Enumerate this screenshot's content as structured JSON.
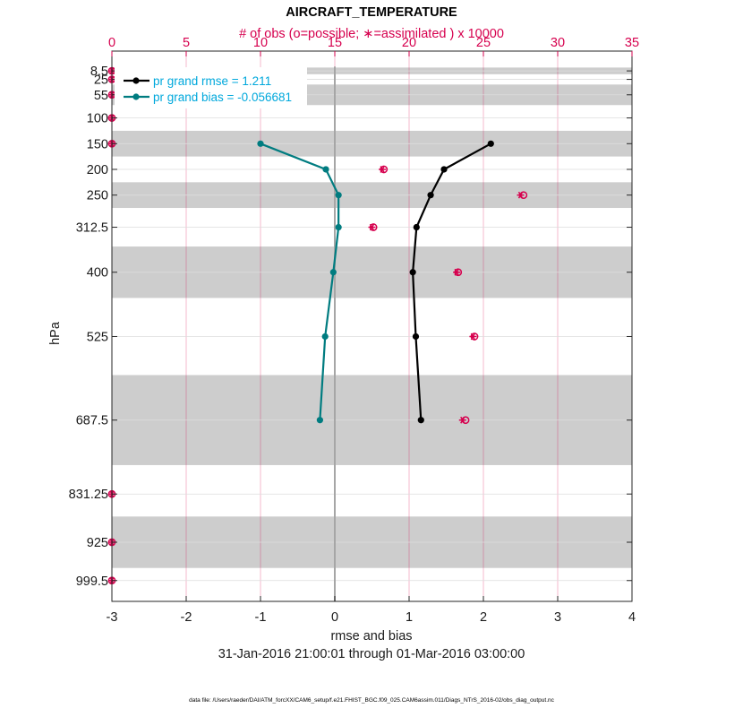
{
  "chart_data": {
    "type": "line",
    "title": "AIRCRAFT_TEMPERATURE",
    "top_axis_label": "# of obs (o=possible; ∗=assimilated ) x 10000",
    "xlabel": "rmse and bias",
    "ylabel": "hPa",
    "date_range": "31-Jan-2016 21:00:01 through 01-Mar-2016 03:00:00",
    "footnote": "data file: /Users/raeder/DAI/ATM_forcXX/CAM6_setup/f.e21.FHIST_BGC.f09_025.CAM6assim.011/Diags_NTrS_2016-02/obs_diag_output.nc",
    "xlim": [
      -3,
      4
    ],
    "x_ticks": [
      -3,
      -2,
      -1,
      0,
      1,
      2,
      3,
      4
    ],
    "x_tick_labels": [
      "-3",
      "-2",
      "-1",
      "0",
      "1",
      "2",
      "3",
      "4"
    ],
    "top_xlim": [
      0,
      35
    ],
    "top_ticks": [
      0,
      5,
      10,
      15,
      20,
      25,
      30,
      35
    ],
    "top_tick_labels": [
      "0",
      "5",
      "10",
      "15",
      "20",
      "25",
      "30",
      "35"
    ],
    "ylim": [
      1040,
      -30
    ],
    "levels": [
      8.5,
      25,
      55,
      100,
      150,
      200,
      250,
      312.5,
      400,
      525,
      687.5,
      831.25,
      925,
      999.5
    ],
    "level_labels": [
      "8.5",
      "25",
      "55",
      "100",
      "150",
      "200",
      "250",
      "312.5",
      "400",
      "525",
      "687.5",
      "831.25",
      "925",
      "999.5"
    ],
    "shaded_bands": [
      [
        2,
        15
      ],
      [
        35,
        75
      ],
      [
        125,
        175
      ],
      [
        225,
        275
      ],
      [
        350,
        450
      ],
      [
        600,
        775
      ],
      [
        875,
        975
      ]
    ],
    "series": [
      {
        "name": "rmse",
        "legend": "pr grand rmse = 1.211",
        "color": "#000000",
        "levels": [
          150,
          200,
          250,
          312.5,
          400,
          525,
          687.5
        ],
        "values": [
          2.1,
          1.47,
          1.29,
          1.1,
          1.05,
          1.09,
          1.16
        ]
      },
      {
        "name": "bias",
        "legend": "pr grand bias = -0.056681",
        "color": "#007C80",
        "levels": [
          150,
          200,
          250,
          312.5,
          400,
          525,
          687.5
        ],
        "values": [
          -1.0,
          -0.12,
          0.05,
          0.05,
          -0.02,
          -0.13,
          -0.2
        ]
      }
    ],
    "obs_counts": {
      "color": "#D6004E",
      "levels": [
        8.5,
        25,
        55,
        100,
        150,
        200,
        250,
        312.5,
        400,
        525,
        687.5,
        831.25,
        925,
        999.5
      ],
      "possible": [
        0,
        0,
        0,
        0,
        0,
        18.3,
        27.7,
        17.6,
        23.3,
        24.4,
        23.8,
        0,
        0,
        0
      ],
      "assimilated": [
        0,
        0,
        0,
        0,
        0,
        18.2,
        27.5,
        17.5,
        23.2,
        24.3,
        23.6,
        0,
        0,
        0
      ]
    }
  }
}
